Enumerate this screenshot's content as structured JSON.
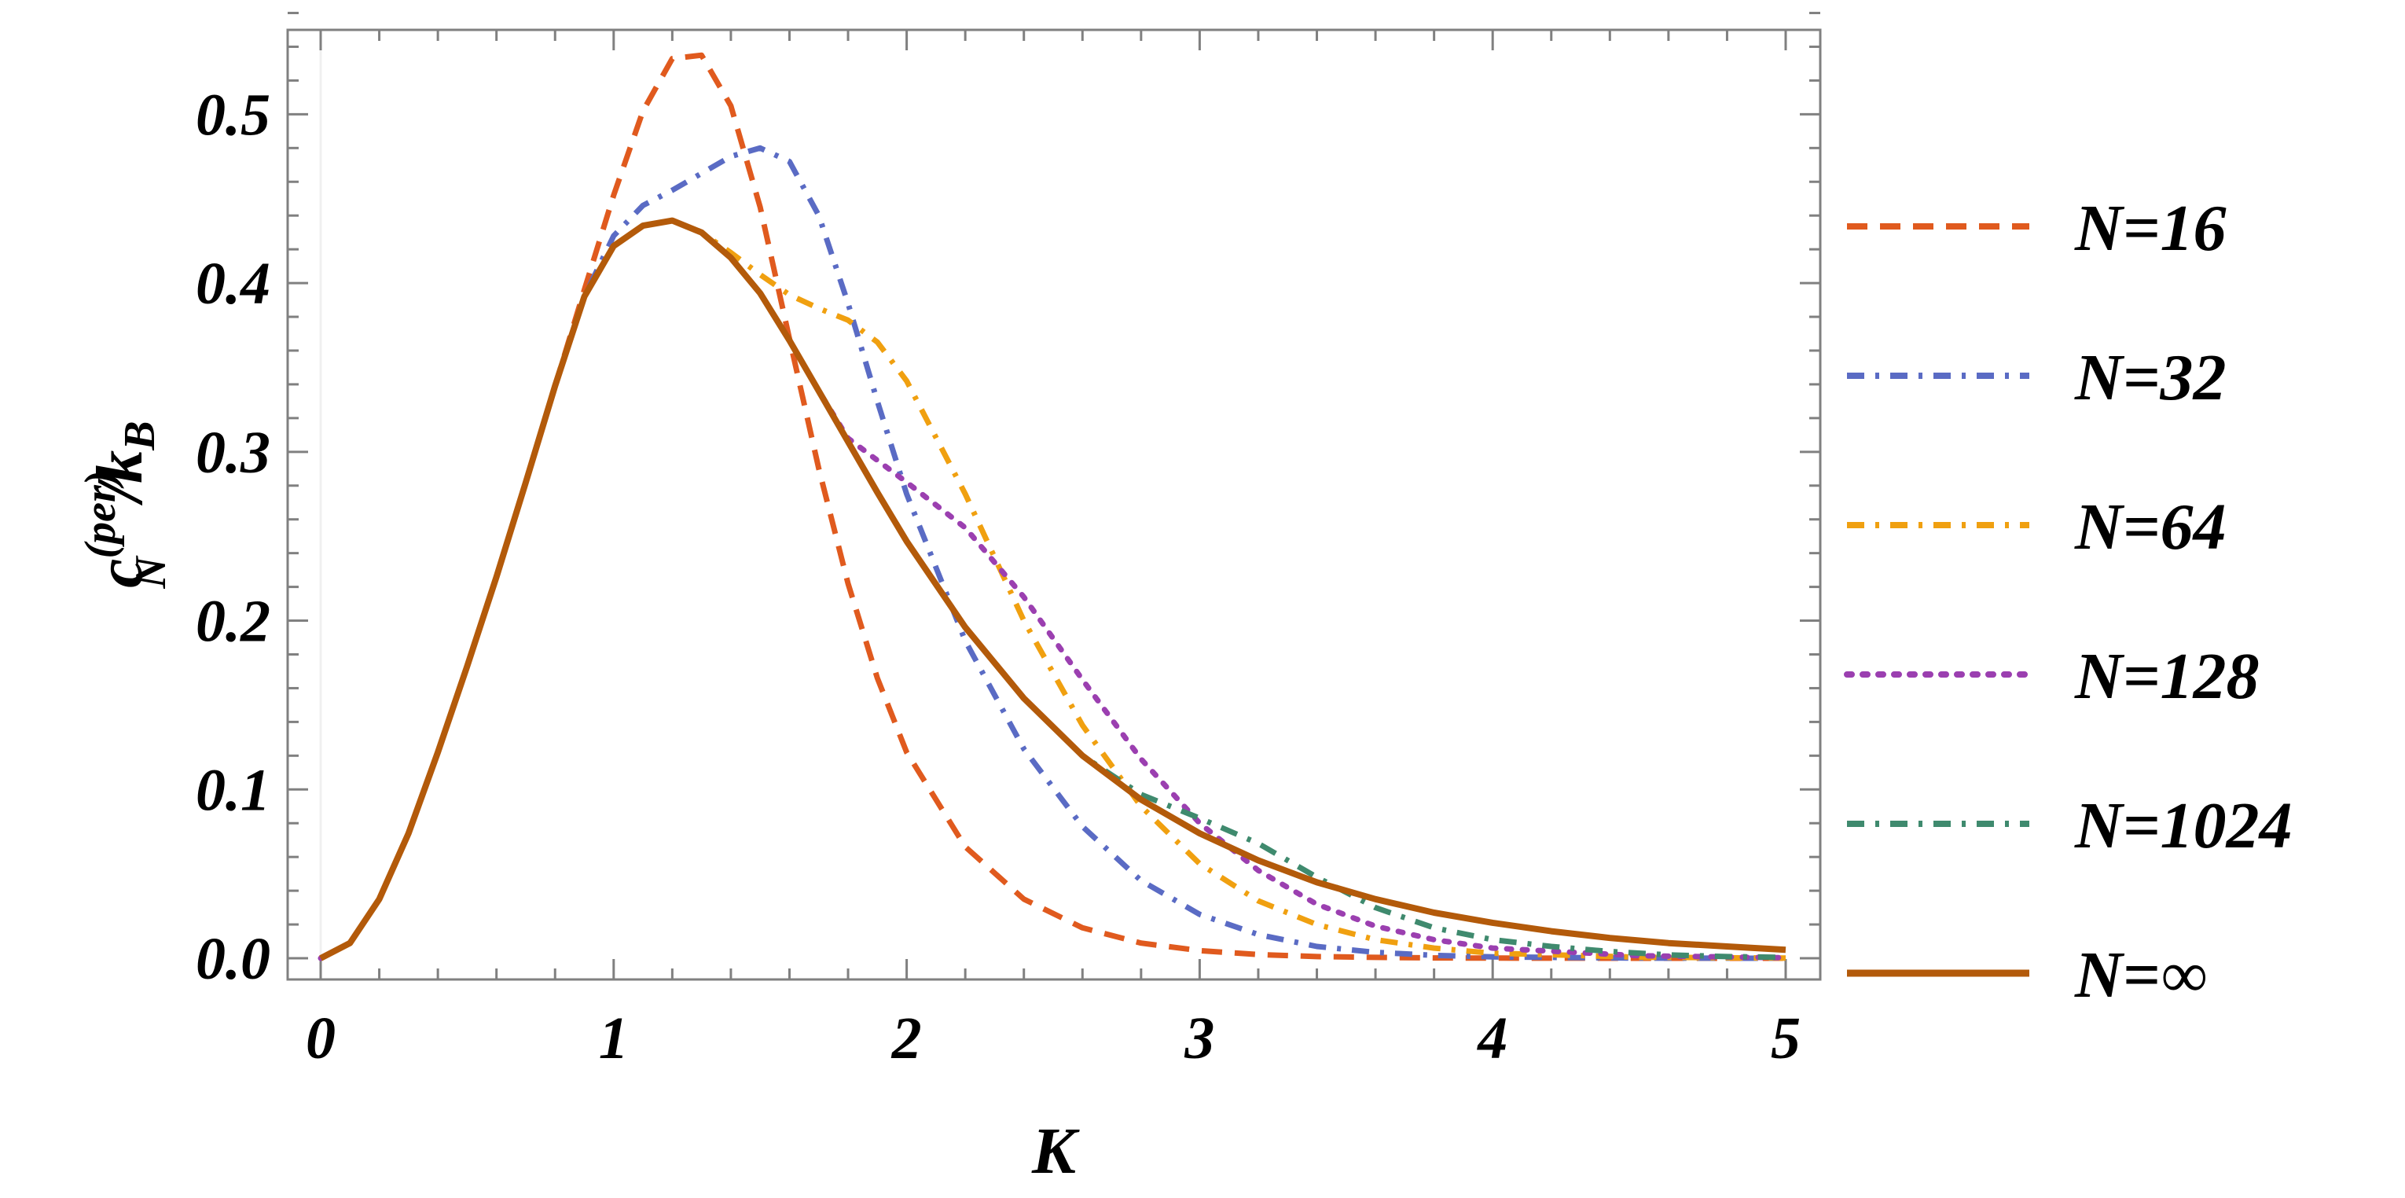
{
  "chart_data": {
    "type": "line",
    "xlabel": "K",
    "ylabel": {
      "main": "c",
      "superscript": "(per)",
      "subscript": "N",
      "divider": "/k",
      "divider_subscript": "B"
    },
    "xlim": [
      0,
      5
    ],
    "ylim": [
      0,
      0.55
    ],
    "x_ticks": [
      0,
      1,
      2,
      3,
      4,
      5
    ],
    "x_tick_labels": [
      "0",
      "1",
      "2",
      "3",
      "4",
      "5"
    ],
    "y_ticks": [
      0.0,
      0.1,
      0.2,
      0.3,
      0.4,
      0.5
    ],
    "y_tick_labels": [
      "0.0",
      "0.1",
      "0.2",
      "0.3",
      "0.4",
      "0.5"
    ],
    "grid": false,
    "legend_position": "right",
    "series": [
      {
        "name": "N=16",
        "color": "#e05a1e",
        "dash": "dashed",
        "x": [
          0,
          0.1,
          0.2,
          0.3,
          0.4,
          0.5,
          0.6,
          0.7,
          0.8,
          0.9,
          1.0,
          1.1,
          1.2,
          1.3,
          1.4,
          1.5,
          1.6,
          1.7,
          1.8,
          1.9,
          2.0,
          2.2,
          2.4,
          2.6,
          2.8,
          3.0,
          3.2,
          3.4,
          3.6,
          3.8,
          4.0,
          4.5,
          5.0
        ],
        "y": [
          0,
          0.009,
          0.035,
          0.074,
          0.122,
          0.173,
          0.226,
          0.282,
          0.339,
          0.396,
          0.452,
          0.502,
          0.533,
          0.535,
          0.505,
          0.445,
          0.367,
          0.29,
          0.222,
          0.166,
          0.122,
          0.066,
          0.035,
          0.018,
          0.009,
          0.0045,
          0.0022,
          0.001,
          0.0005,
          0.0002,
          0.0001,
          0.0,
          0.0
        ]
      },
      {
        "name": "N=32",
        "color": "#5a6bc4",
        "dash": "dashdot",
        "x": [
          0,
          0.1,
          0.2,
          0.3,
          0.4,
          0.5,
          0.6,
          0.7,
          0.8,
          0.9,
          1.0,
          1.1,
          1.2,
          1.3,
          1.4,
          1.5,
          1.6,
          1.7,
          1.8,
          1.9,
          2.0,
          2.2,
          2.4,
          2.6,
          2.8,
          3.0,
          3.2,
          3.4,
          3.6,
          3.8,
          4.0,
          4.5,
          5.0
        ],
        "y": [
          0,
          0.009,
          0.035,
          0.074,
          0.122,
          0.173,
          0.226,
          0.282,
          0.339,
          0.392,
          0.428,
          0.446,
          0.455,
          0.465,
          0.475,
          0.48,
          0.472,
          0.44,
          0.388,
          0.33,
          0.275,
          0.188,
          0.124,
          0.078,
          0.046,
          0.026,
          0.014,
          0.007,
          0.0035,
          0.0017,
          0.0008,
          0.0001,
          0.0
        ]
      },
      {
        "name": "N=64",
        "color": "#f0a010",
        "dash": "dashdot",
        "x": [
          0,
          0.1,
          0.2,
          0.3,
          0.4,
          0.5,
          0.6,
          0.7,
          0.8,
          0.9,
          1.0,
          1.1,
          1.2,
          1.3,
          1.4,
          1.5,
          1.6,
          1.7,
          1.8,
          1.9,
          2.0,
          2.2,
          2.4,
          2.6,
          2.8,
          3.0,
          3.2,
          3.4,
          3.6,
          3.8,
          4.0,
          4.5,
          5.0
        ],
        "y": [
          0,
          0.009,
          0.035,
          0.074,
          0.122,
          0.173,
          0.226,
          0.282,
          0.339,
          0.392,
          0.422,
          0.434,
          0.437,
          0.43,
          0.418,
          0.405,
          0.393,
          0.385,
          0.378,
          0.365,
          0.342,
          0.275,
          0.2,
          0.138,
          0.09,
          0.056,
          0.034,
          0.02,
          0.011,
          0.006,
          0.003,
          0.0006,
          0.0001
        ]
      },
      {
        "name": "N=128",
        "color": "#9b3fb0",
        "dash": "dotted",
        "x": [
          0,
          0.1,
          0.2,
          0.3,
          0.4,
          0.5,
          0.6,
          0.7,
          0.8,
          0.9,
          1.0,
          1.1,
          1.2,
          1.3,
          1.4,
          1.5,
          1.6,
          1.7,
          1.8,
          1.9,
          2.0,
          2.2,
          2.4,
          2.6,
          2.8,
          3.0,
          3.2,
          3.4,
          3.6,
          3.8,
          4.0,
          4.5,
          5.0
        ],
        "y": [
          0,
          0.009,
          0.035,
          0.074,
          0.122,
          0.173,
          0.226,
          0.282,
          0.339,
          0.392,
          0.422,
          0.434,
          0.437,
          0.43,
          0.415,
          0.394,
          0.366,
          0.336,
          0.308,
          0.295,
          0.282,
          0.255,
          0.214,
          0.165,
          0.118,
          0.08,
          0.052,
          0.032,
          0.019,
          0.011,
          0.006,
          0.0015,
          0.0003
        ]
      },
      {
        "name": "N=1024",
        "color": "#3f8a6e",
        "dash": "dashdot",
        "x": [
          0,
          0.1,
          0.2,
          0.3,
          0.4,
          0.5,
          0.6,
          0.7,
          0.8,
          0.9,
          1.0,
          1.1,
          1.2,
          1.3,
          1.4,
          1.5,
          1.6,
          1.7,
          1.8,
          1.9,
          2.0,
          2.2,
          2.4,
          2.6,
          2.8,
          3.0,
          3.2,
          3.4,
          3.6,
          3.8,
          4.0,
          4.2,
          4.4,
          4.6,
          4.8,
          5.0
        ],
        "y": [
          0,
          0.009,
          0.035,
          0.074,
          0.122,
          0.173,
          0.226,
          0.282,
          0.339,
          0.392,
          0.422,
          0.434,
          0.437,
          0.43,
          0.415,
          0.394,
          0.366,
          0.336,
          0.306,
          0.276,
          0.247,
          0.196,
          0.154,
          0.12,
          0.097,
          0.083,
          0.068,
          0.048,
          0.03,
          0.018,
          0.011,
          0.007,
          0.004,
          0.002,
          0.001,
          0.0005
        ]
      },
      {
        "name": "N=∞",
        "color": "#b35a0a",
        "dash": "solid",
        "x": [
          0,
          0.1,
          0.2,
          0.3,
          0.4,
          0.5,
          0.6,
          0.7,
          0.8,
          0.9,
          1.0,
          1.1,
          1.2,
          1.3,
          1.4,
          1.5,
          1.6,
          1.7,
          1.8,
          1.9,
          2.0,
          2.2,
          2.4,
          2.6,
          2.8,
          3.0,
          3.2,
          3.4,
          3.6,
          3.8,
          4.0,
          4.2,
          4.4,
          4.6,
          4.8,
          5.0
        ],
        "y": [
          0,
          0.009,
          0.035,
          0.074,
          0.122,
          0.173,
          0.226,
          0.282,
          0.339,
          0.392,
          0.422,
          0.434,
          0.437,
          0.43,
          0.415,
          0.394,
          0.366,
          0.336,
          0.306,
          0.276,
          0.247,
          0.196,
          0.154,
          0.12,
          0.094,
          0.074,
          0.058,
          0.045,
          0.035,
          0.027,
          0.021,
          0.016,
          0.012,
          0.009,
          0.007,
          0.005
        ]
      }
    ]
  }
}
